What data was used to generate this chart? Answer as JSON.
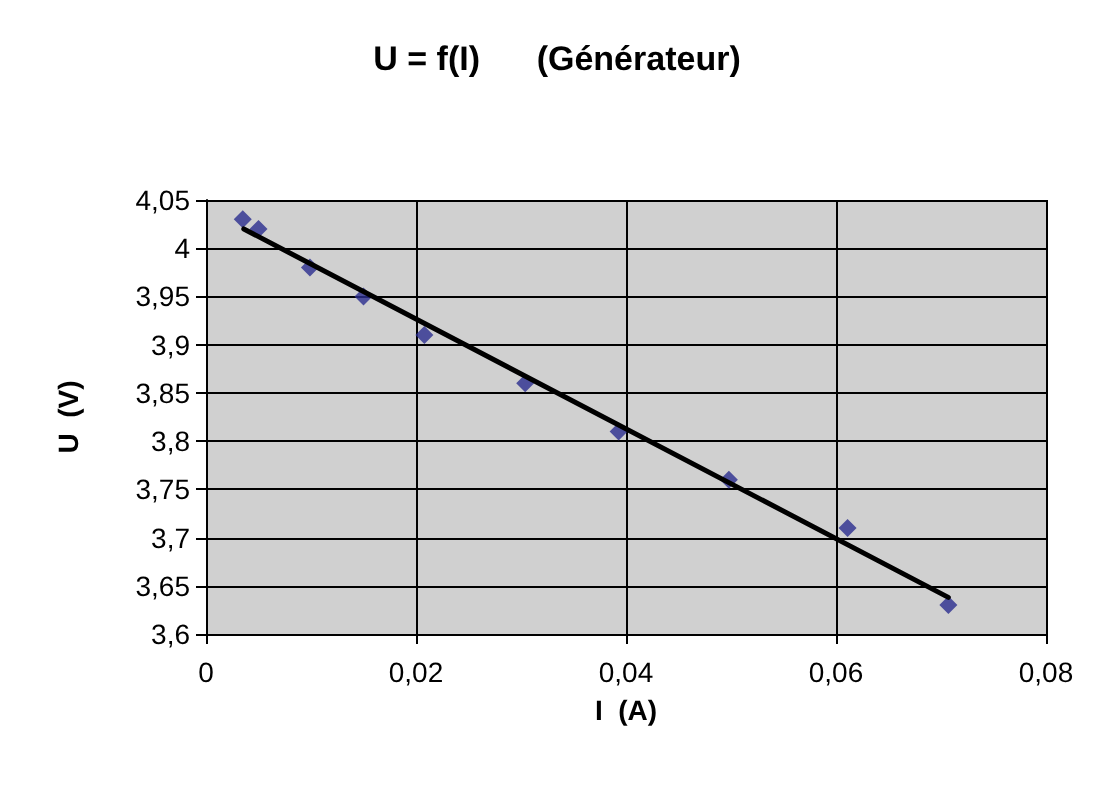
{
  "chart_data": {
    "type": "scatter",
    "title": "U = f(I)      (Générateur)",
    "xlabel": "I  (A)",
    "ylabel": "U  (V)",
    "xlim": [
      0,
      0.08
    ],
    "xticks": [
      {
        "value": 0,
        "label": "0"
      },
      {
        "value": 0.02,
        "label": "0,02"
      },
      {
        "value": 0.04,
        "label": "0,04"
      },
      {
        "value": 0.06,
        "label": "0,06"
      },
      {
        "value": 0.08,
        "label": "0,08"
      }
    ],
    "ylim": [
      3.6,
      4.05
    ],
    "yticks": [
      {
        "value": 3.6,
        "label": "3,6"
      },
      {
        "value": 3.65,
        "label": "3,65"
      },
      {
        "value": 3.7,
        "label": "3,7"
      },
      {
        "value": 3.75,
        "label": "3,75"
      },
      {
        "value": 3.8,
        "label": "3,8"
      },
      {
        "value": 3.85,
        "label": "3,85"
      },
      {
        "value": 3.9,
        "label": "3,9"
      },
      {
        "value": 3.95,
        "label": "3,95"
      },
      {
        "value": 4,
        "label": "4"
      },
      {
        "value": 4.05,
        "label": "4,05"
      }
    ],
    "grid": true,
    "marker": "diamond",
    "series": [
      {
        "color": "#2b2d8f",
        "x": [
          0.0035,
          0.005,
          0.0099,
          0.015,
          0.0208,
          0.0304,
          0.0393,
          0.0498,
          0.0611,
          0.0707
        ],
        "values": [
          4.03,
          4.02,
          3.98,
          3.95,
          3.91,
          3.86,
          3.81,
          3.76,
          3.71,
          3.63
        ]
      },
      {
        "type": "line",
        "color": "#000000",
        "x": [
          0.0036,
          0.0707
        ],
        "values": [
          4.02,
          3.638
        ],
        "marker": "none",
        "line_style": "solid"
      }
    ]
  }
}
